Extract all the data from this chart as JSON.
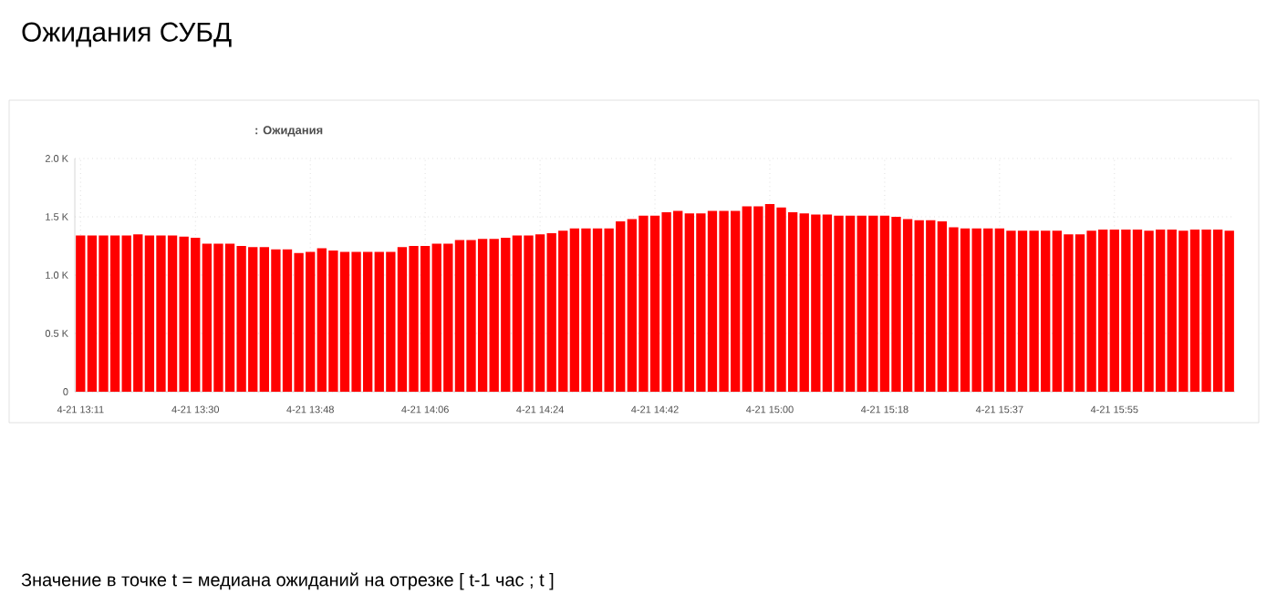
{
  "chart_data": {
    "type": "bar",
    "title": "Ожидания СУБД",
    "subtitle": ": Ожидания",
    "annotations": [
      "Значение в точке t = медиана ожиданий на отрезке [ t-1 час ; t ]"
    ],
    "categories": [
      "4-21 13:11",
      null,
      null,
      null,
      null,
      null,
      null,
      null,
      null,
      null,
      "4-21 13:30",
      null,
      null,
      null,
      null,
      null,
      null,
      null,
      null,
      null,
      "4-21 13:48",
      null,
      null,
      null,
      null,
      null,
      null,
      null,
      null,
      null,
      "4-21 14:06",
      null,
      null,
      null,
      null,
      null,
      null,
      null,
      null,
      null,
      "4-21 14:24",
      null,
      null,
      null,
      null,
      null,
      null,
      null,
      null,
      null,
      "4-21 14:42",
      null,
      null,
      null,
      null,
      null,
      null,
      null,
      null,
      null,
      "4-21 15:00",
      null,
      null,
      null,
      null,
      null,
      null,
      null,
      null,
      null,
      "4-21 15:18",
      null,
      null,
      null,
      null,
      null,
      null,
      null,
      null,
      null,
      "4-21 15:37",
      null,
      null,
      null,
      null,
      null,
      null,
      null,
      null,
      null,
      "4-21 15:55",
      null,
      null,
      null,
      null,
      null,
      null,
      null,
      null,
      null,
      null
    ],
    "values": [
      1.34,
      1.34,
      1.34,
      1.34,
      1.34,
      1.35,
      1.34,
      1.34,
      1.34,
      1.33,
      1.32,
      1.27,
      1.27,
      1.27,
      1.25,
      1.24,
      1.24,
      1.22,
      1.22,
      1.19,
      1.2,
      1.23,
      1.21,
      1.2,
      1.2,
      1.2,
      1.2,
      1.2,
      1.24,
      1.25,
      1.25,
      1.27,
      1.27,
      1.3,
      1.3,
      1.31,
      1.31,
      1.32,
      1.34,
      1.34,
      1.35,
      1.36,
      1.38,
      1.4,
      1.4,
      1.4,
      1.4,
      1.46,
      1.48,
      1.51,
      1.51,
      1.54,
      1.55,
      1.53,
      1.53,
      1.55,
      1.55,
      1.55,
      1.59,
      1.59,
      1.61,
      1.58,
      1.54,
      1.53,
      1.52,
      1.52,
      1.51,
      1.51,
      1.51,
      1.51,
      1.51,
      1.5,
      1.48,
      1.47,
      1.47,
      1.46,
      1.41,
      1.4,
      1.4,
      1.4,
      1.4,
      1.38,
      1.38,
      1.38,
      1.38,
      1.38,
      1.35,
      1.35,
      1.38,
      1.39,
      1.39,
      1.39,
      1.39,
      1.38,
      1.39,
      1.39,
      1.38,
      1.39,
      1.39,
      1.39,
      1.38
    ],
    "color": "#ff0000",
    "ylim": [
      0,
      2.0
    ],
    "yticks": [
      0,
      {
        "value": 0.5,
        "label": "0.5 K"
      },
      {
        "value": 1.0,
        "label": "1.0 K"
      },
      {
        "value": 1.5,
        "label": "1.5 K"
      },
      {
        "value": 2.0,
        "label": "2.0 K"
      }
    ],
    "grid": true
  }
}
